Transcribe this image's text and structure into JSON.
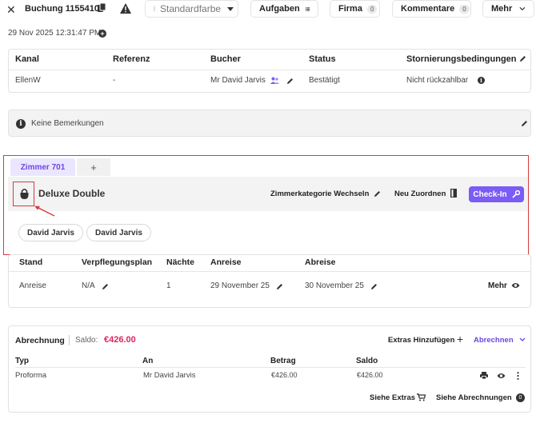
{
  "header": {
    "title": "Buchung 1155410",
    "color_select": "Standardfarbe",
    "tasks_label": "Aufgaben",
    "company_label": "Firma",
    "company_count": "0",
    "comments_label": "Kommentare",
    "comments_count": "0",
    "more_label": "Mehr",
    "created_at": "29 Nov 2025 12:31:47 PM"
  },
  "booking_table": {
    "headers": [
      "Kanal",
      "Referenz",
      "Bucher",
      "Status",
      "Stornierungsbedingungen"
    ],
    "row": [
      "EllenW",
      "-",
      "Mr David Jarvis",
      "Bestätigt",
      "Nicht rückzahlbar"
    ]
  },
  "remarks": {
    "text": "Keine Bemerkungen"
  },
  "room": {
    "tab_label": "Zimmer 701",
    "tab_add": "+",
    "type": "Deluxe Double",
    "change_category": "Zimmerkategorie Wechseln",
    "reassign": "Neu Zuordnen",
    "checkin": "Check-In",
    "guests": [
      "David Jarvis",
      "David Jarvis"
    ]
  },
  "stay": {
    "headers": [
      "Stand",
      "Verpflegungsplan",
      "Nächte",
      "Anreise",
      "Abreise"
    ],
    "row": [
      "Anreise",
      "N/A",
      "1",
      "29 November 25",
      "30 November 25"
    ],
    "more": "Mehr"
  },
  "billing": {
    "title": "Abrechnung",
    "balance_label": "Saldo:",
    "balance_value": "€426.00",
    "add_extras": "Extras Hinzufügen",
    "bill_menu": "Abrechnen",
    "headers": [
      "Typ",
      "An",
      "Betrag",
      "Saldo"
    ],
    "row": [
      "Proforma",
      "Mr David Jarvis",
      "€426.00",
      "€426.00"
    ],
    "see_extras": "Siehe Extras",
    "see_bills": "Siehe Abrechnungen",
    "bills_count": "0"
  },
  "colors": {
    "accent": "#7b5cf5",
    "balance": "#e0245e",
    "highlight": "#d83a3a"
  }
}
